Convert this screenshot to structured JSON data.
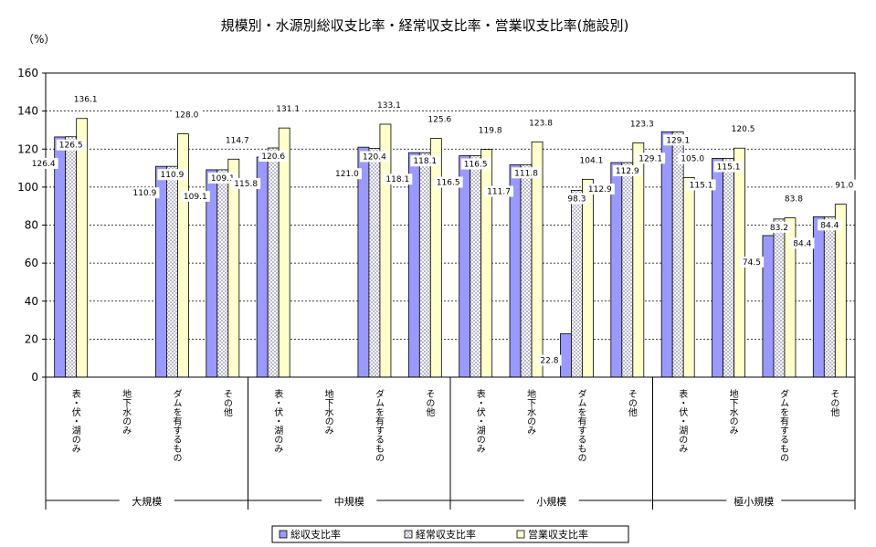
{
  "chart_data": {
    "type": "bar",
    "title": "規模別・水源別総収支比率・経常収支比率・営業収支比率(施設別)",
    "unit_label": "（%）",
    "ylim": [
      0,
      160
    ],
    "yticks": [
      0,
      20,
      40,
      60,
      80,
      100,
      120,
      140,
      160
    ],
    "grid": true,
    "legend_position": "bottom",
    "group_labels": [
      "大規模",
      "中規模",
      "小規模",
      "極小規模"
    ],
    "category_labels": [
      "表・伏・湖のみ",
      "地下水のみ",
      "ダムを有するもの",
      "その他"
    ],
    "categories": [
      "大規模 表・伏・湖のみ",
      "大規模 地下水のみ",
      "大規模 ダムを有するもの",
      "大規模 その他",
      "中規模 表・伏・湖のみ",
      "中規模 地下水のみ",
      "中規模 ダムを有するもの",
      "中規模 その他",
      "小規模 表・伏・湖のみ",
      "小規模 地下水のみ",
      "小規模 ダムを有するもの",
      "小規模 その他",
      "極小規模 表・伏・湖のみ",
      "極小規模 地下水のみ",
      "極小規模 ダムを有するもの",
      "極小規模 その他"
    ],
    "series": [
      {
        "name": "総収支比率",
        "color": "#9999ff",
        "pattern": "solid",
        "values": [
          126.4,
          null,
          110.9,
          109.1,
          115.8,
          null,
          121.0,
          118.1,
          116.5,
          111.7,
          22.8,
          112.9,
          129.1,
          115.1,
          74.5,
          84.4
        ]
      },
      {
        "name": "経常収支比率",
        "color": "#c8c8d8",
        "pattern": "checker",
        "values": [
          126.5,
          null,
          110.9,
          109.1,
          120.6,
          null,
          120.4,
          118.1,
          116.5,
          111.8,
          98.3,
          112.9,
          129.1,
          115.1,
          83.2,
          84.4
        ]
      },
      {
        "name": "営業収支比率",
        "color": "#ffffcc",
        "pattern": "solid",
        "values": [
          136.1,
          null,
          128.0,
          114.7,
          131.1,
          null,
          133.1,
          125.6,
          119.8,
          123.8,
          104.1,
          123.3,
          105.0,
          120.5,
          83.8,
          91.0
        ]
      }
    ],
    "data_labels": [
      [
        "126.4",
        null,
        "110.9",
        "109.1",
        "115.8",
        null,
        "121.0",
        "118.1",
        "116.5",
        "111.7",
        "22.8",
        "112.9",
        "129.1",
        "115.1",
        "74.5",
        "84.4"
      ],
      [
        "126.5",
        null,
        "110.9",
        "109.1",
        "120.6",
        null,
        "120.4",
        "118.1",
        "116.5",
        "111.8",
        "98.3",
        "112.9",
        "129.1",
        "115.1",
        "83.2",
        "84.4"
      ],
      [
        "136.1",
        null,
        "128.0",
        "114.7",
        "131.1",
        null,
        "133.1",
        "125.6",
        "119.8",
        "123.8",
        "104.1",
        "123.3",
        "105.0",
        "120.5",
        "83.8",
        "91.0"
      ]
    ]
  }
}
